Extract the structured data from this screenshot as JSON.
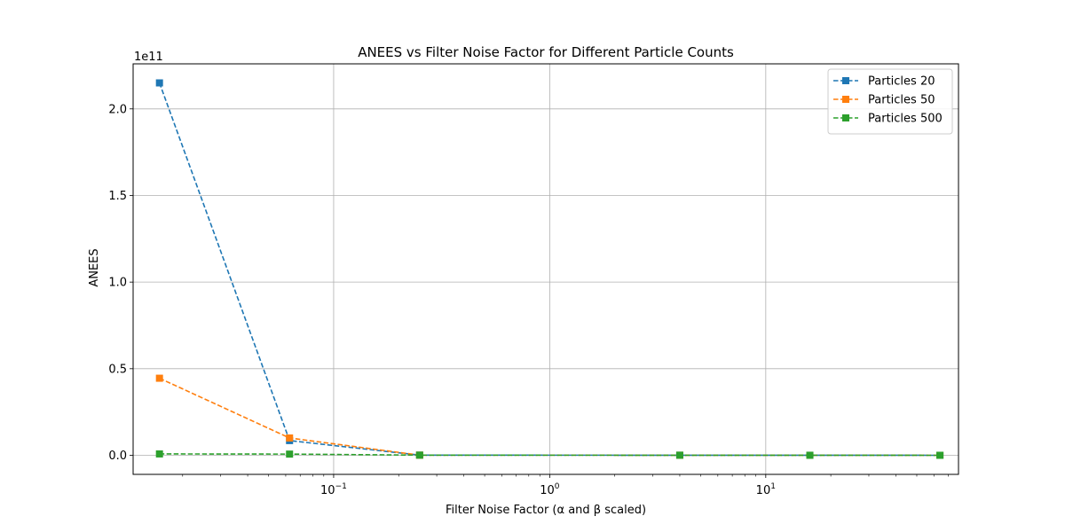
{
  "chart_data": {
    "type": "line",
    "title": "ANEES vs Filter Noise Factor for Different Particle Counts",
    "xlabel": "Filter Noise Factor (α and β scaled)",
    "ylabel": "ANEES",
    "y_offset_label": "1e11",
    "x_scale": "log",
    "xlim": [
      0.0118,
      78
    ],
    "ylim": [
      -11000000000.0,
      226000000000.0
    ],
    "x_ticks": [
      {
        "value": 0.1,
        "base": "10",
        "exp": "−1"
      },
      {
        "value": 1,
        "base": "10",
        "exp": "0"
      },
      {
        "value": 10,
        "base": "10",
        "exp": "1"
      }
    ],
    "y_ticks": [
      {
        "value": 0,
        "label": "0.0"
      },
      {
        "value": 50000000000.0,
        "label": "0.5"
      },
      {
        "value": 100000000000.0,
        "label": "1.0"
      },
      {
        "value": 150000000000.0,
        "label": "1.5"
      },
      {
        "value": 200000000000.0,
        "label": "2.0"
      }
    ],
    "grid": true,
    "legend_position": "top-right",
    "x": [
      0.015625,
      0.0625,
      0.25,
      4,
      16,
      64
    ],
    "series": [
      {
        "name": "Particles 20",
        "color": "#1f77b4",
        "marker": "square",
        "linestyle": "dashed",
        "values": [
          215000000000.0,
          8500000000.0,
          100000000.0,
          50000000.0,
          20000000.0,
          10000000.0
        ]
      },
      {
        "name": "Particles 50",
        "color": "#ff7f0e",
        "marker": "square",
        "linestyle": "dashed",
        "values": [
          44500000000.0,
          10000000000.0,
          100000000.0,
          50000000.0,
          20000000.0,
          10000000.0
        ]
      },
      {
        "name": "Particles 500",
        "color": "#2ca02c",
        "marker": "square",
        "linestyle": "dashed",
        "values": [
          800000000.0,
          700000000.0,
          100000000.0,
          50000000.0,
          20000000.0,
          10000000.0
        ]
      }
    ]
  }
}
